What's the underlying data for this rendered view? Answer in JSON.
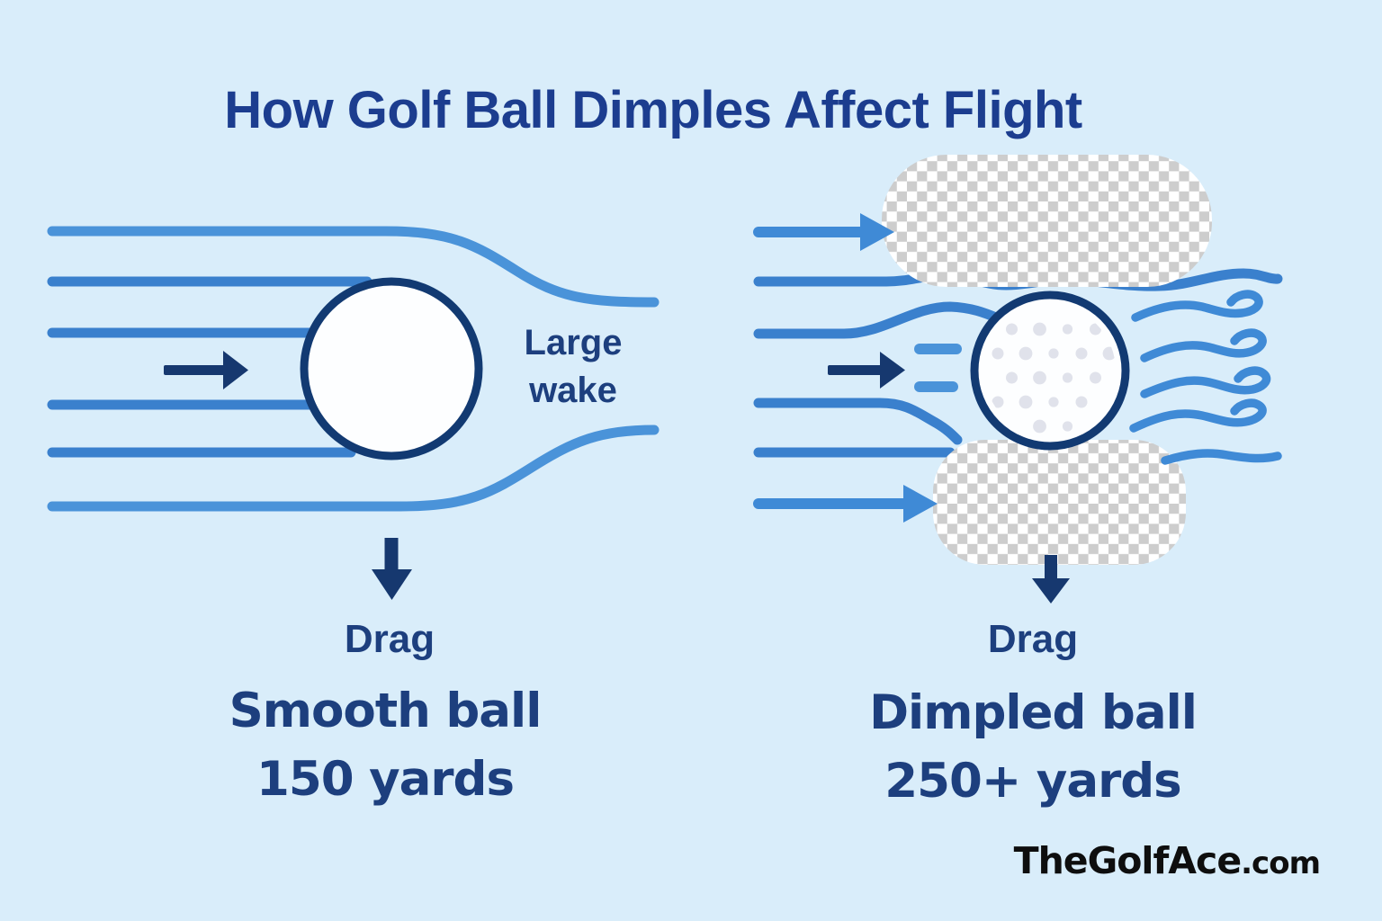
{
  "title": "How Golf Ball Dimples Affect Flight",
  "left_panel": {
    "wake_label": "Large wake",
    "drag_label": "Drag",
    "ball_name": "Smooth ball",
    "distance": "150 yards"
  },
  "right_panel": {
    "drag_label": "Drag",
    "ball_name": "Dimpled ball",
    "distance": "250+ yards"
  },
  "branding": {
    "site_name": "TheGolfAce",
    "site_tld": ".com"
  },
  "colors": {
    "background": "#d9edfa",
    "title_blue": "#1c3d8f",
    "text_navy": "#1d3f7e",
    "stream_blue": "#3a80cd",
    "stream_light_blue": "#4a93d9",
    "wave_blue": "#3f8ad6",
    "arrow_navy": "#16386f",
    "ball_outline": "#123a72",
    "checker_gray": "#cdcdcd",
    "dimple_gray": "#e0e2eb",
    "logo_black": "#0e0e0e"
  }
}
